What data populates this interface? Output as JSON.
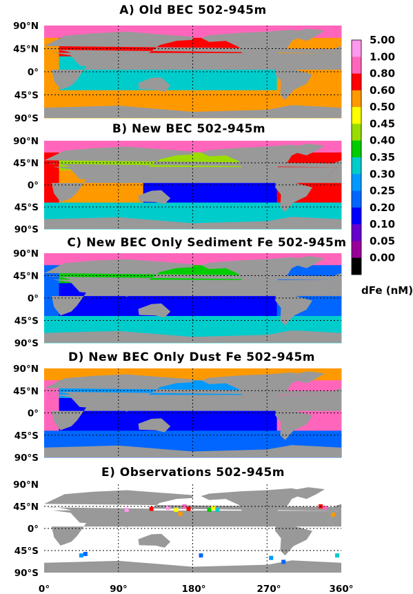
{
  "chart_data": [
    {
      "type": "heatmap",
      "panel": "A",
      "title": "A) Old BEC 502-945m",
      "variable": "dFe",
      "depth_range": "502-945m",
      "ocean_means_nM": {
        "arctic": 0.8,
        "north_atlantic": 0.55,
        "north_pacific": 0.6,
        "tropical_pacific": 0.3,
        "south_pacific": 0.3,
        "southern_ocean": 0.5,
        "indian": 0.3
      }
    },
    {
      "type": "heatmap",
      "panel": "B",
      "title": "B) New BEC 502-945m",
      "variable": "dFe",
      "depth_range": "502-945m",
      "ocean_means_nM": {
        "arctic": 0.8,
        "north_atlantic": 0.6,
        "north_pacific": 0.4,
        "tropical_pacific": 0.1,
        "south_pacific": 0.1,
        "southern_ocean": 0.3,
        "indian": 0.5
      }
    },
    {
      "type": "heatmap",
      "panel": "C",
      "title": "C) New BEC Only Sediment Fe 502-945m",
      "variable": "dFe",
      "depth_range": "502-945m",
      "ocean_means_nM": {
        "arctic": 0.8,
        "north_atlantic": 0.2,
        "north_pacific": 0.35,
        "tropical_pacific": 0.1,
        "south_pacific": 0.1,
        "southern_ocean": 0.3,
        "indian": 0.1
      }
    },
    {
      "type": "heatmap",
      "panel": "D",
      "title": "D) New BEC Only Dust Fe 502-945m",
      "variable": "dFe",
      "depth_range": "502-945m",
      "ocean_means_nM": {
        "arctic": 0.5,
        "north_atlantic": 0.8,
        "north_pacific": 0.25,
        "tropical_pacific": 0.1,
        "south_pacific": 0.1,
        "southern_ocean": 0.2,
        "indian": 0.1
      }
    },
    {
      "type": "heatmap",
      "panel": "E",
      "title": "E) Observations 502-945m",
      "variable": "dFe",
      "depth_range": "502-945m",
      "observations": [
        {
          "lon": 45,
          "lat": -55,
          "dfe": 0.25
        },
        {
          "lon": 50,
          "lat": -52,
          "dfe": 0.2
        },
        {
          "lon": 100,
          "lat": 38,
          "dfe": 1.0
        },
        {
          "lon": 130,
          "lat": 40,
          "dfe": 0.6
        },
        {
          "lon": 150,
          "lat": 42,
          "dfe": 1.0
        },
        {
          "lon": 160,
          "lat": 38,
          "dfe": 0.45
        },
        {
          "lon": 165,
          "lat": 30,
          "dfe": 0.5
        },
        {
          "lon": 170,
          "lat": 45,
          "dfe": 0.8
        },
        {
          "lon": 175,
          "lat": 40,
          "dfe": 0.6
        },
        {
          "lon": 190,
          "lat": -55,
          "dfe": 0.2
        },
        {
          "lon": 200,
          "lat": 38,
          "dfe": 0.35
        },
        {
          "lon": 205,
          "lat": 42,
          "dfe": 0.45
        },
        {
          "lon": 210,
          "lat": 38,
          "dfe": 0.3
        },
        {
          "lon": 275,
          "lat": -60,
          "dfe": 0.25
        },
        {
          "lon": 290,
          "lat": -68,
          "dfe": 0.2
        },
        {
          "lon": 335,
          "lat": 45,
          "dfe": 0.6
        },
        {
          "lon": 340,
          "lat": 42,
          "dfe": 0.8
        },
        {
          "lon": 355,
          "lat": -55,
          "dfe": 0.3
        },
        {
          "lon": 350,
          "lat": 28,
          "dfe": 0.5
        }
      ]
    }
  ],
  "axes": {
    "x_ticks": [
      "0°",
      "90°",
      "180°",
      "270°",
      "360°"
    ],
    "y_ticks": [
      "90°N",
      "45°N",
      "0°",
      "45°S",
      "90°S"
    ]
  },
  "colorbar": {
    "labels": [
      "5.00",
      "1.00",
      "0.80",
      "0.60",
      "0.50",
      "0.45",
      "0.40",
      "0.35",
      "0.30",
      "0.25",
      "0.20",
      "0.10",
      "0.05",
      "0.00"
    ],
    "colors": [
      "#ff99ee",
      "#ff66bb",
      "#ff0000",
      "#ff9900",
      "#ffff00",
      "#99dd00",
      "#00cc00",
      "#00cccc",
      "#0099ff",
      "#0066ff",
      "#0000ff",
      "#6600cc",
      "#990099",
      "#000000"
    ],
    "unit": "dFe (nM)"
  },
  "land_color": "#999999"
}
